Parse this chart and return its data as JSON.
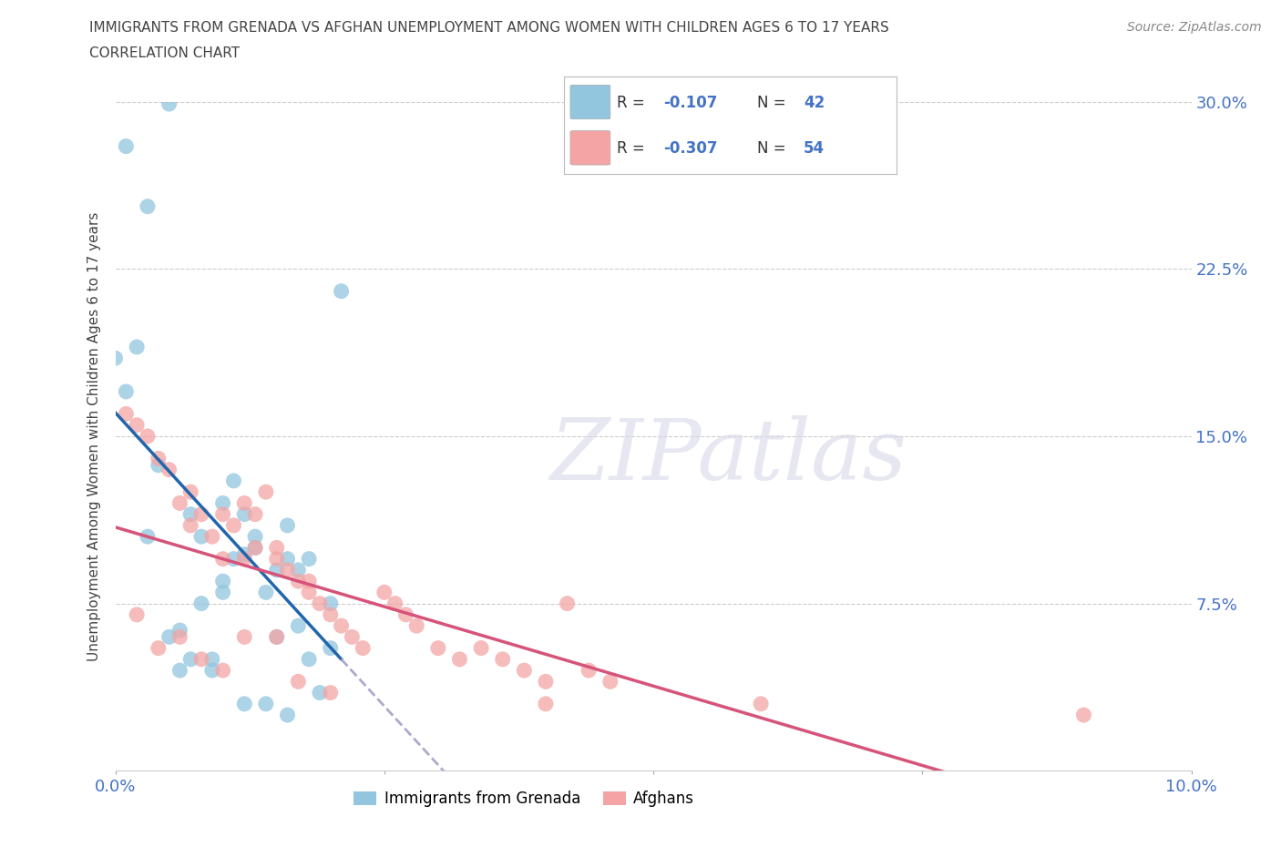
{
  "title_line1": "IMMIGRANTS FROM GRENADA VS AFGHAN UNEMPLOYMENT AMONG WOMEN WITH CHILDREN AGES 6 TO 17 YEARS",
  "title_line2": "CORRELATION CHART",
  "source_text": "Source: ZipAtlas.com",
  "ylabel": "Unemployment Among Women with Children Ages 6 to 17 years",
  "xlim": [
    0.0,
    0.1
  ],
  "ylim": [
    0.0,
    0.3
  ],
  "watermark_text": "ZIPatlas",
  "legend_R1": "-0.107",
  "legend_N1": "42",
  "legend_R2": "-0.307",
  "legend_N2": "54",
  "grenada_color": "#92c5de",
  "afghan_color": "#f4a4a4",
  "line_grenada_color": "#2166ac",
  "line_afghan_color": "#d6537a",
  "line_ext_color": "#aaaacc",
  "background_color": "#ffffff",
  "grid_color": "#cccccc",
  "title_color": "#444444",
  "axis_color": "#4472c4",
  "text_color": "#333333",
  "grenada_x": [
    0.001,
    0.003,
    0.004,
    0.005,
    0.006,
    0.007,
    0.007,
    0.008,
    0.009,
    0.01,
    0.01,
    0.011,
    0.011,
    0.012,
    0.012,
    0.013,
    0.013,
    0.014,
    0.015,
    0.015,
    0.016,
    0.016,
    0.017,
    0.017,
    0.018,
    0.018,
    0.019,
    0.02,
    0.02,
    0.021,
    0.002,
    0.003,
    0.005,
    0.006,
    0.008,
    0.009,
    0.01,
    0.012,
    0.014,
    0.016,
    0.0,
    0.001
  ],
  "grenada_y": [
    0.28,
    0.253,
    0.137,
    0.299,
    0.063,
    0.05,
    0.115,
    0.105,
    0.05,
    0.12,
    0.08,
    0.095,
    0.13,
    0.097,
    0.115,
    0.1,
    0.105,
    0.08,
    0.09,
    0.06,
    0.095,
    0.11,
    0.09,
    0.065,
    0.095,
    0.05,
    0.035,
    0.055,
    0.075,
    0.215,
    0.19,
    0.105,
    0.06,
    0.045,
    0.075,
    0.045,
    0.085,
    0.03,
    0.03,
    0.025,
    0.185,
    0.17
  ],
  "afghan_x": [
    0.001,
    0.002,
    0.003,
    0.004,
    0.005,
    0.006,
    0.007,
    0.007,
    0.008,
    0.009,
    0.01,
    0.01,
    0.011,
    0.012,
    0.012,
    0.013,
    0.013,
    0.014,
    0.015,
    0.015,
    0.016,
    0.017,
    0.018,
    0.018,
    0.019,
    0.02,
    0.021,
    0.022,
    0.023,
    0.025,
    0.026,
    0.027,
    0.028,
    0.03,
    0.032,
    0.034,
    0.036,
    0.038,
    0.04,
    0.042,
    0.044,
    0.046,
    0.002,
    0.004,
    0.006,
    0.008,
    0.01,
    0.012,
    0.015,
    0.017,
    0.02,
    0.04,
    0.06,
    0.09
  ],
  "afghan_y": [
    0.16,
    0.155,
    0.15,
    0.14,
    0.135,
    0.12,
    0.125,
    0.11,
    0.115,
    0.105,
    0.115,
    0.095,
    0.11,
    0.12,
    0.095,
    0.1,
    0.115,
    0.125,
    0.1,
    0.095,
    0.09,
    0.085,
    0.085,
    0.08,
    0.075,
    0.07,
    0.065,
    0.06,
    0.055,
    0.08,
    0.075,
    0.07,
    0.065,
    0.055,
    0.05,
    0.055,
    0.05,
    0.045,
    0.04,
    0.075,
    0.045,
    0.04,
    0.07,
    0.055,
    0.06,
    0.05,
    0.045,
    0.06,
    0.06,
    0.04,
    0.035,
    0.03,
    0.03,
    0.025
  ]
}
